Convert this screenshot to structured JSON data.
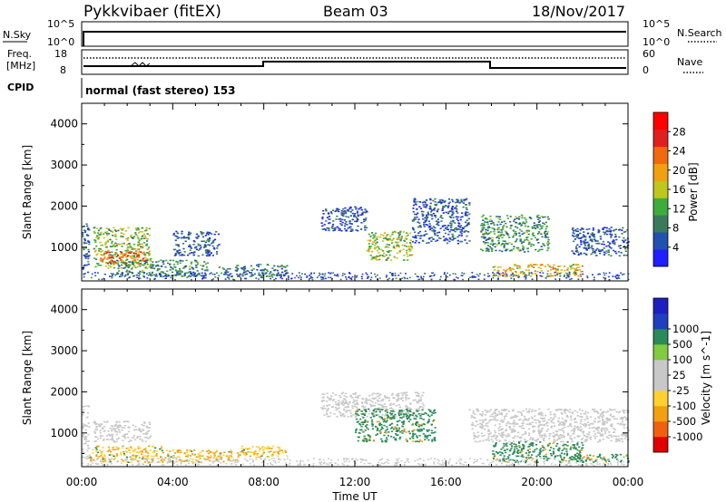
{
  "header": {
    "radar": "Pykkvibaer (fitEX)",
    "beam": "Beam 03",
    "date": "18/Nov/2017"
  },
  "top_panels": {
    "nsky_label": "N.Sky",
    "nsearch_label": "N.Search",
    "left_ticks": [
      "10^5",
      "10^0"
    ],
    "right_ticks": [
      "10^5",
      "10^0"
    ],
    "freq_label_1": "Freq.",
    "freq_label_2": "[MHz]",
    "freq_ticks": [
      "18",
      "8"
    ],
    "nave_label": "Nave",
    "nave_ticks": [
      "60",
      "0"
    ],
    "cpid_label": "CPID",
    "cpid_text": "normal (fast stereo) 153"
  },
  "colors": {
    "power_scale": [
      "#1f1fff",
      "#2050b0",
      "#3a7a5a",
      "#3cad3c",
      "#bfc61e",
      "#f0a010",
      "#f06a10",
      "#e02020",
      "#ff0000"
    ],
    "velocity_scale": [
      "#e00000",
      "#f06010",
      "#f0a010",
      "#ffd030",
      "#c8c8c8",
      "#c8c8c8",
      "#80cc40",
      "#2a8a5a",
      "#1f3fbf",
      "#1f1fbf"
    ]
  },
  "chart_data": [
    {
      "type": "heatmap",
      "title": "Power",
      "xlabel": "",
      "ylabel": "Slant Range [km]",
      "x_ticks": [
        "00:00",
        "04:00",
        "08:00",
        "12:00",
        "16:00",
        "20:00",
        "00:00"
      ],
      "xlim_hours": [
        0,
        24
      ],
      "ylim": [
        180,
        4500
      ],
      "y_ticks": [
        1000,
        2000,
        3000,
        4000
      ],
      "colorbar_label": "Power [dB]",
      "colorbar_ticks": [
        4,
        8,
        12,
        16,
        20,
        24,
        28
      ],
      "colorbar_range": [
        0,
        32
      ],
      "regions": [
        {
          "t0": 0.0,
          "t1": 0.3,
          "r0": 400,
          "r1": 1700,
          "value": 6
        },
        {
          "t0": 0.5,
          "t1": 3.0,
          "r0": 500,
          "r1": 1500,
          "value": 14
        },
        {
          "t0": 0.8,
          "t1": 2.8,
          "r0": 600,
          "r1": 900,
          "value": 24
        },
        {
          "t0": 1.5,
          "t1": 5.5,
          "r0": 300,
          "r1": 700,
          "value": 10
        },
        {
          "t0": 4.0,
          "t1": 6.0,
          "r0": 800,
          "r1": 1400,
          "value": 6
        },
        {
          "t0": 6.0,
          "t1": 9.0,
          "r0": 300,
          "r1": 600,
          "value": 8
        },
        {
          "t0": 10.5,
          "t1": 12.5,
          "r0": 1400,
          "r1": 2000,
          "value": 5
        },
        {
          "t0": 12.5,
          "t1": 14.5,
          "r0": 700,
          "r1": 1400,
          "value": 14
        },
        {
          "t0": 14.5,
          "t1": 17.0,
          "r0": 1100,
          "r1": 2200,
          "value": 6
        },
        {
          "t0": 17.5,
          "t1": 20.5,
          "r0": 900,
          "r1": 1800,
          "value": 10
        },
        {
          "t0": 18.0,
          "t1": 22.0,
          "r0": 300,
          "r1": 600,
          "value": 18
        },
        {
          "t0": 21.5,
          "t1": 24.0,
          "r0": 800,
          "r1": 1500,
          "value": 6
        }
      ]
    },
    {
      "type": "heatmap",
      "title": "Velocity",
      "xlabel": "Time UT",
      "ylabel": "Slant Range [km]",
      "x_ticks": [
        "00:00",
        "04:00",
        "08:00",
        "12:00",
        "16:00",
        "20:00",
        "00:00"
      ],
      "xlim_hours": [
        0,
        24
      ],
      "ylim": [
        180,
        4500
      ],
      "y_ticks": [
        1000,
        2000,
        3000,
        4000
      ],
      "colorbar_label": "Velocity [m s^-1]",
      "colorbar_ticks": [
        "-1000",
        "-500",
        "-100",
        "-25",
        "25",
        "100",
        "500",
        "1000"
      ],
      "regions": [
        {
          "t0": 0.0,
          "t1": 0.3,
          "r0": 400,
          "r1": 1700,
          "value": 0
        },
        {
          "t0": 0.5,
          "t1": 3.0,
          "r0": 800,
          "r1": 1300,
          "value": 0
        },
        {
          "t0": 0.3,
          "t1": 3.5,
          "r0": 300,
          "r1": 700,
          "value": -100
        },
        {
          "t0": 3.5,
          "t1": 7.0,
          "r0": 300,
          "r1": 600,
          "value": -100
        },
        {
          "t0": 7.0,
          "t1": 9.0,
          "r0": 400,
          "r1": 700,
          "value": -100
        },
        {
          "t0": 10.5,
          "t1": 15.0,
          "r0": 1400,
          "r1": 2000,
          "value": 0
        },
        {
          "t0": 12.0,
          "t1": 15.5,
          "r0": 800,
          "r1": 1600,
          "value": 300
        },
        {
          "t0": 17.0,
          "t1": 24.0,
          "r0": 800,
          "r1": 1600,
          "value": 0
        },
        {
          "t0": 18.0,
          "t1": 22.0,
          "r0": 300,
          "r1": 800,
          "value": 300
        },
        {
          "t0": 21.5,
          "t1": 24.0,
          "r0": 300,
          "r1": 500,
          "value": 200
        }
      ]
    }
  ]
}
